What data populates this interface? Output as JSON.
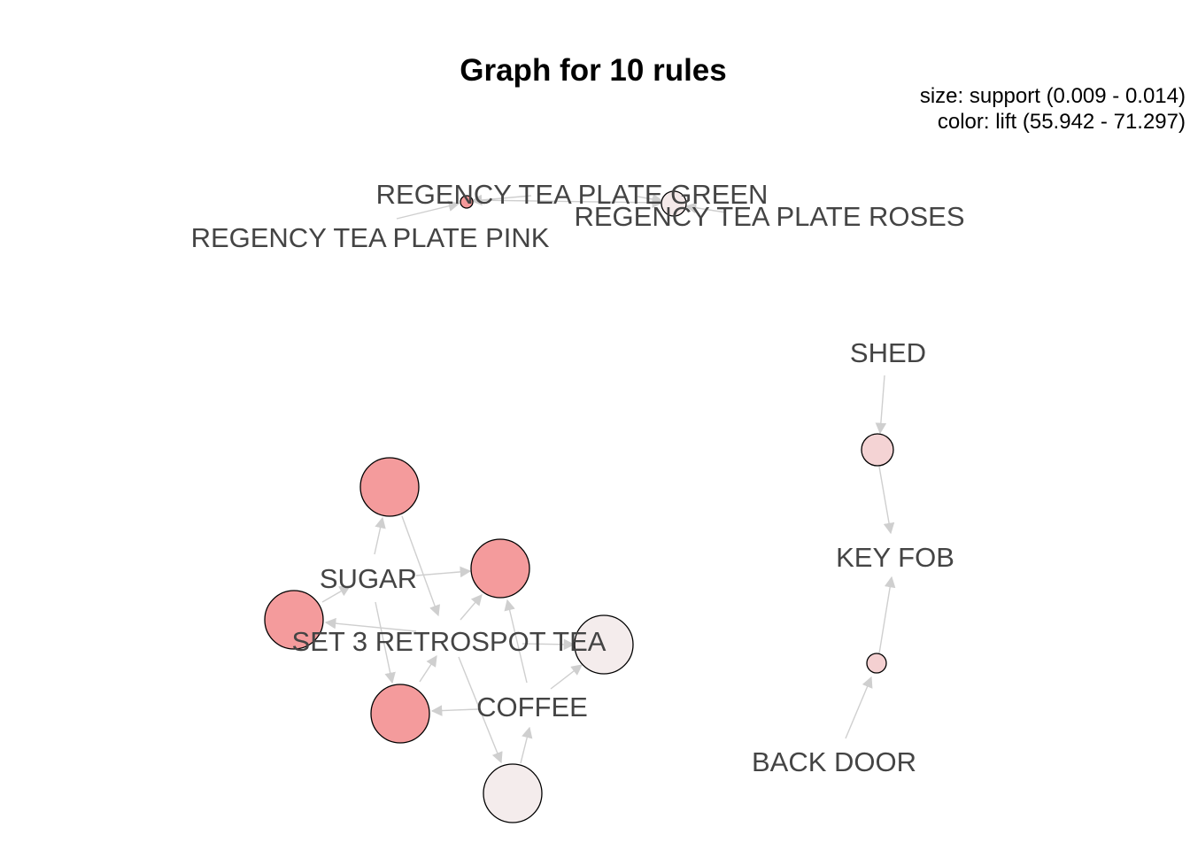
{
  "title": "Graph for 10 rules",
  "legend": {
    "size_line": "size: support (0.009 - 0.014)",
    "color_line": "color: lift (55.942 - 71.297)"
  },
  "items": [
    {
      "id": "regency-pink",
      "label": "REGENCY TEA PLATE PINK"
    },
    {
      "id": "regency-green",
      "label": "REGENCY TEA PLATE GREEN"
    },
    {
      "id": "regency-roses",
      "label": "REGENCY TEA PLATE ROSES"
    },
    {
      "id": "shed",
      "label": "SHED"
    },
    {
      "id": "key-fob",
      "label": "KEY FOB"
    },
    {
      "id": "back-door",
      "label": "BACK DOOR"
    },
    {
      "id": "sugar",
      "label": "SUGAR"
    },
    {
      "id": "set3-tea",
      "label": "SET 3 RETROSPOT TEA"
    },
    {
      "id": "coffee",
      "label": "COFFEE"
    }
  ],
  "rules": [
    {
      "id": "r1",
      "color": "#f4999a"
    },
    {
      "id": "r2",
      "color": "#f4e9e9"
    },
    {
      "id": "r3",
      "color": "#f4d3d4"
    },
    {
      "id": "r4",
      "color": "#f4d0d1"
    },
    {
      "id": "r5",
      "color": "#f49b9c"
    },
    {
      "id": "r6",
      "color": "#f49b9c"
    },
    {
      "id": "r7",
      "color": "#f49b9c"
    },
    {
      "id": "r8",
      "color": "#f49b9c"
    },
    {
      "id": "r9",
      "color": "#f4ecec"
    },
    {
      "id": "r10",
      "color": "#f4ecec"
    }
  ],
  "edges": [
    {
      "from": "regency-pink",
      "to": "r1"
    },
    {
      "from": "regency-green",
      "to": "r1"
    },
    {
      "from": "r1",
      "to": "regency-roses"
    },
    {
      "from": "regency-green",
      "to": "r2"
    },
    {
      "from": "regency-roses",
      "to": "r2"
    },
    {
      "from": "shed",
      "to": "r3"
    },
    {
      "from": "r3",
      "to": "key-fob"
    },
    {
      "from": "back-door",
      "to": "r4"
    },
    {
      "from": "r4",
      "to": "key-fob"
    }
  ]
}
